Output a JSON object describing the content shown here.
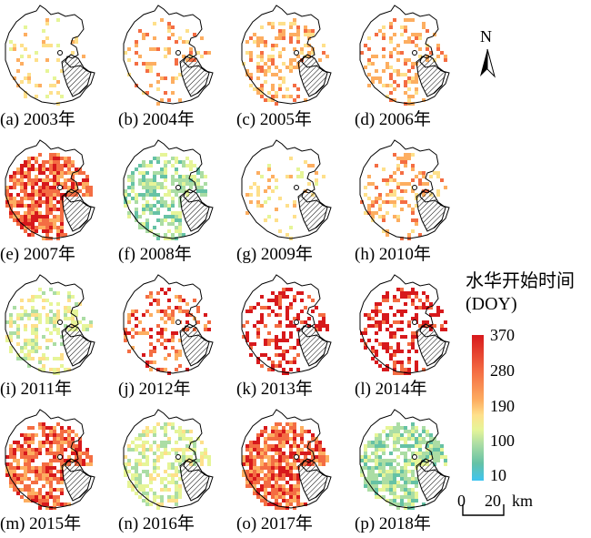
{
  "panels": [
    {
      "caption": "(a) 2003年",
      "dominant": "#fee08b",
      "intensity": 0.12
    },
    {
      "caption": "(b) 2004年",
      "dominant": "#fdae61",
      "intensity": 0.22
    },
    {
      "caption": "(c) 2005年",
      "dominant": "#fdae61",
      "intensity": 0.35
    },
    {
      "caption": "(d) 2006年",
      "dominant": "#fdae61",
      "intensity": 0.32
    },
    {
      "caption": "(e) 2007年",
      "dominant": "#f46d43",
      "intensity": 0.8
    },
    {
      "caption": "(f) 2008年",
      "dominant": "#abdda4",
      "intensity": 0.55
    },
    {
      "caption": "(g) 2009年",
      "dominant": "#fee08b",
      "intensity": 0.15
    },
    {
      "caption": "(h) 2010年",
      "dominant": "#fdae61",
      "intensity": 0.28
    },
    {
      "caption": "(i) 2011年",
      "dominant": "#e6f598",
      "intensity": 0.38
    },
    {
      "caption": "(j) 2012年",
      "dominant": "#f46d43",
      "intensity": 0.33
    },
    {
      "caption": "(k) 2013年",
      "dominant": "#d7191c",
      "intensity": 0.35
    },
    {
      "caption": "(l) 2014年",
      "dominant": "#d7191c",
      "intensity": 0.42
    },
    {
      "caption": "(m) 2015年",
      "dominant": "#f46d43",
      "intensity": 0.72
    },
    {
      "caption": "(n) 2016年",
      "dominant": "#e6f598",
      "intensity": 0.58
    },
    {
      "caption": "(o) 2017年",
      "dominant": "#f46d43",
      "intensity": 0.82
    },
    {
      "caption": "(p) 2018年",
      "dominant": "#abdda4",
      "intensity": 0.75
    }
  ],
  "legend": {
    "title": "水华开始时间",
    "unit": "(DOY)",
    "ticks": [
      "370",
      "280",
      "190",
      "100",
      "10"
    ],
    "colors": [
      "#d7191c",
      "#f46d43",
      "#fdae61",
      "#fee08b",
      "#e6f598",
      "#abdda4",
      "#66c2a5",
      "#3ec4f0"
    ]
  },
  "north": {
    "label": "N",
    "icon": "north-arrow-icon"
  },
  "scale": {
    "zero": "0",
    "twenty": "20",
    "unit": "km"
  }
}
